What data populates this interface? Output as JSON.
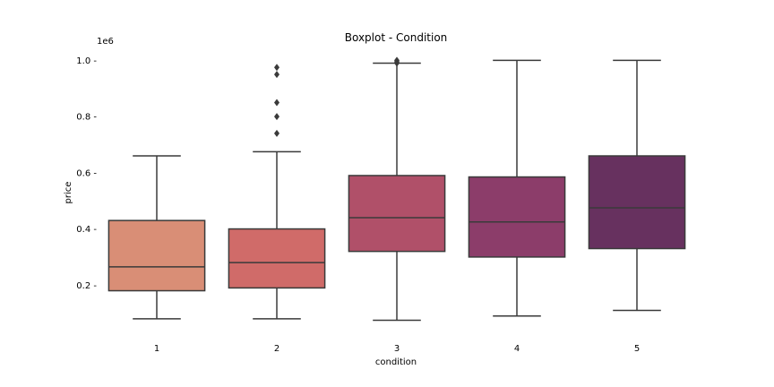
{
  "chart_data": {
    "type": "boxplot",
    "title": "Boxplot - Condition",
    "xlabel": "condition",
    "ylabel": "price",
    "y_offset_label": "1e6",
    "ylim": [
      0.035,
      1.03
    ],
    "y_ticks": [
      0.2,
      0.4,
      0.6,
      0.8,
      1.0
    ],
    "y_tick_labels": [
      "0.2 -",
      "0.4 -",
      "0.6 -",
      "0.8 -",
      "1.0 -"
    ],
    "grid": false,
    "categories": [
      "1",
      "2",
      "3",
      "4",
      "5"
    ],
    "boxes": [
      {
        "category": "1",
        "whisker_low": 0.08,
        "q1": 0.18,
        "median": 0.265,
        "q3": 0.43,
        "whisker_high": 0.66,
        "fliers": [],
        "color": "#d98e76"
      },
      {
        "category": "2",
        "whisker_low": 0.08,
        "q1": 0.19,
        "median": 0.28,
        "q3": 0.4,
        "whisker_high": 0.675,
        "fliers": [
          0.74,
          0.8,
          0.85,
          0.95,
          0.975
        ],
        "color": "#d06b69"
      },
      {
        "category": "3",
        "whisker_low": 0.075,
        "q1": 0.32,
        "median": 0.44,
        "q3": 0.59,
        "whisker_high": 0.99,
        "fliers": [
          0.99,
          0.995,
          1.0
        ],
        "color": "#b05069"
      },
      {
        "category": "4",
        "whisker_low": 0.09,
        "q1": 0.3,
        "median": 0.425,
        "q3": 0.585,
        "whisker_high": 1.0,
        "fliers": [],
        "color": "#8c3d6a"
      },
      {
        "category": "5",
        "whisker_low": 0.11,
        "q1": 0.33,
        "median": 0.475,
        "q3": 0.66,
        "whisker_high": 1.0,
        "fliers": [],
        "color": "#67315f"
      }
    ]
  }
}
